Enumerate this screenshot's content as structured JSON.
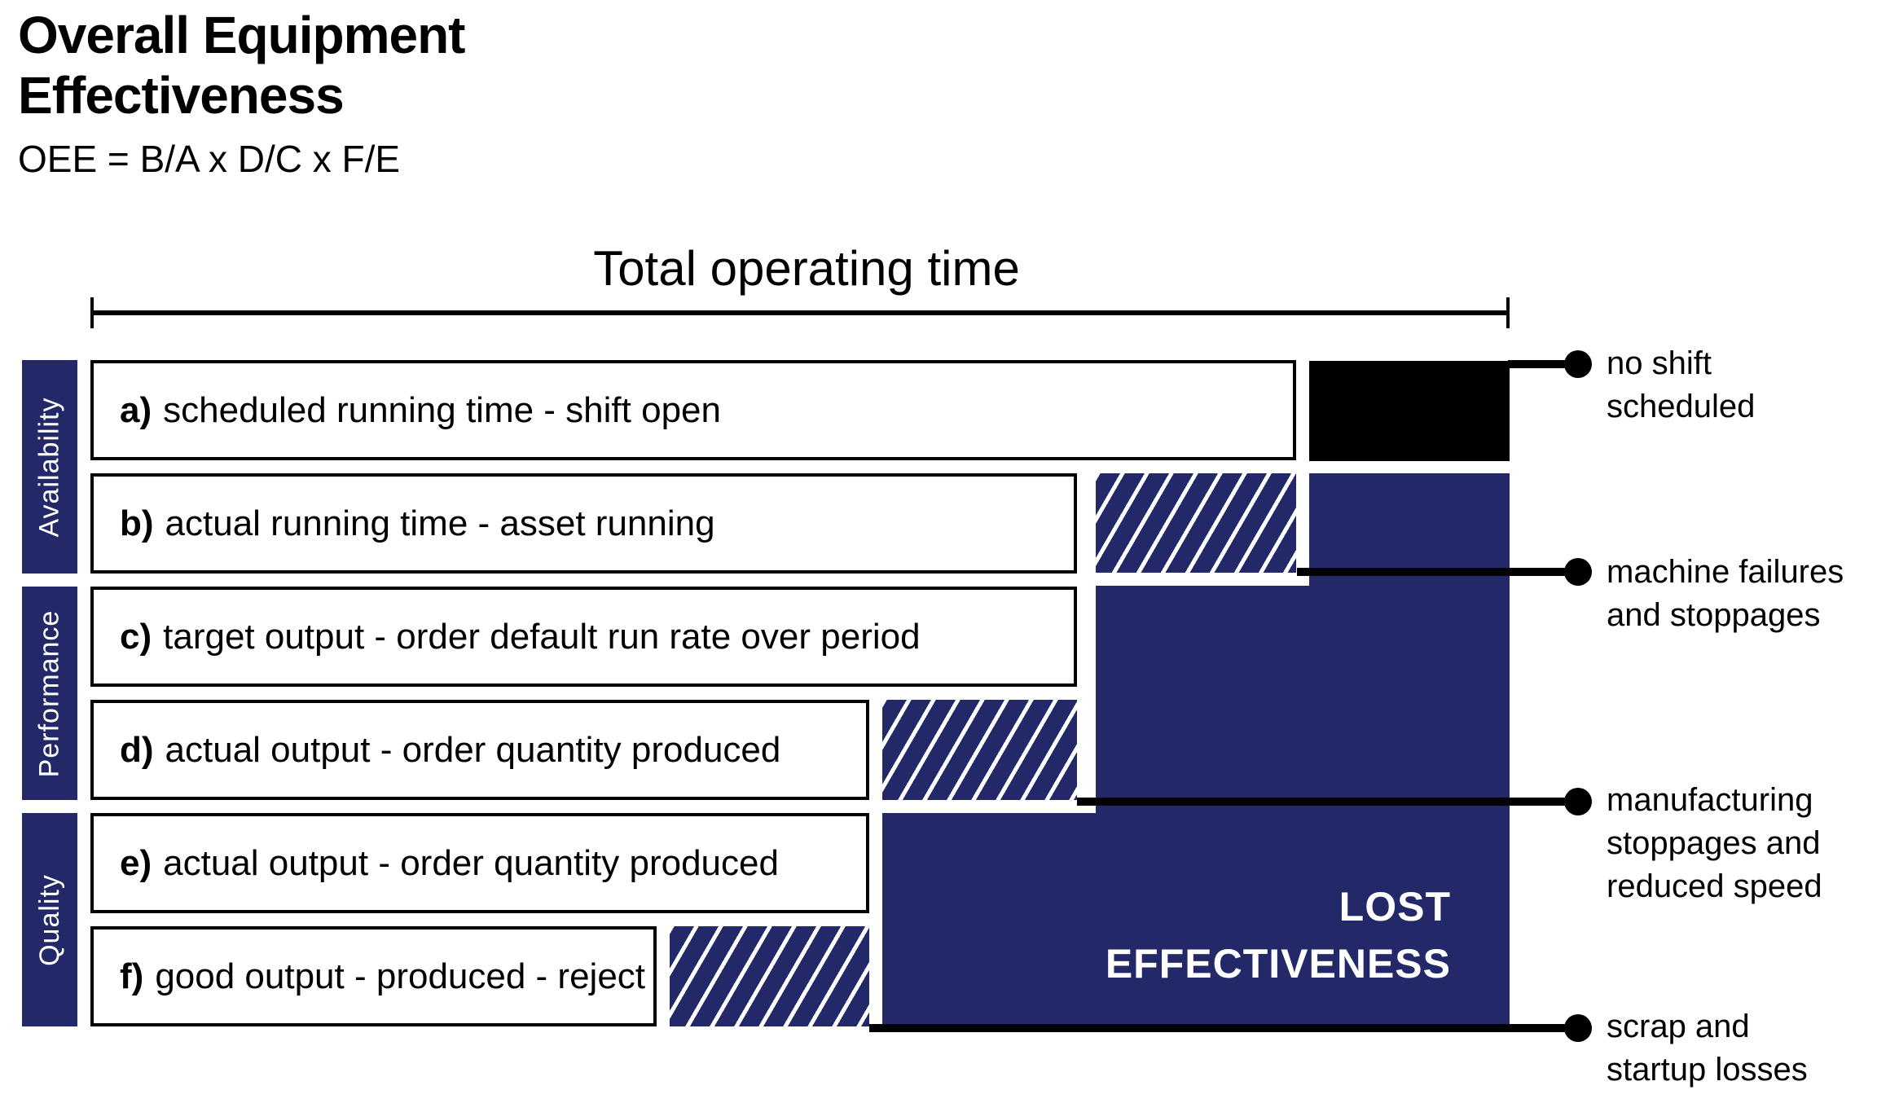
{
  "title": {
    "line1": "Overall Equipment",
    "line2": "Effectiveness",
    "formula": "OEE = B/A x D/C x F/E"
  },
  "axis": {
    "label": "Total operating time"
  },
  "groups": [
    {
      "label": "Availability"
    },
    {
      "label": "Performance"
    },
    {
      "label": "Quality"
    }
  ],
  "rows": [
    {
      "prefix": "a)",
      "label": "scheduled running time - shift open"
    },
    {
      "prefix": "b)",
      "label": "actual running time - asset running"
    },
    {
      "prefix": "c)",
      "label": "target output - order default run rate over period"
    },
    {
      "prefix": "d)",
      "label": "actual output - order quantity produced"
    },
    {
      "prefix": "e)",
      "label": "actual output - order quantity produced"
    },
    {
      "prefix": "f)",
      "label": "good output - produced - reject"
    }
  ],
  "lost_region": {
    "line1": "LOST",
    "line2": "EFFECTIVENESS"
  },
  "callouts": [
    {
      "line1": "no shift",
      "line2": "scheduled"
    },
    {
      "line1": "machine failures",
      "line2": "and stoppages"
    },
    {
      "line1": "manufacturing",
      "line2": "stoppages and",
      "line3": "reduced speed"
    },
    {
      "line1": "scrap and",
      "line2": "startup losses"
    }
  ],
  "colors": {
    "navy": "#232968",
    "black": "#000000",
    "stripe": "#ffffff"
  }
}
